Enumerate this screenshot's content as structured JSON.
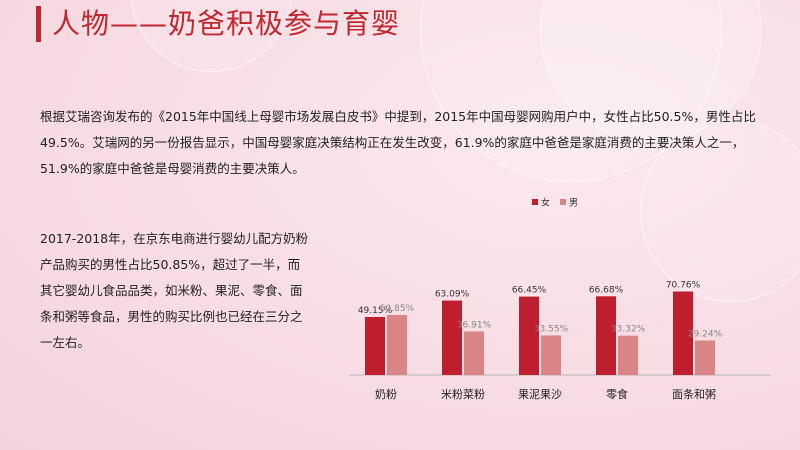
{
  "title": "人物——奶爸积极参与育婴",
  "paragraph1": "根据艾瑞咨询发布的《2015年中国线上母婴市场发展白皮书》中提到，2015年中国母婴网购用户中，女性占比50.5%，男性占比49.5%。艾瑞网的另一份报告显示，中国母婴家庭决策结构正在发生改变，61.9%的家庭中爸爸是家庭消费的主要决策人之一，51.9%的家庭中爸爸是母婴消费的主要决策人。",
  "paragraph2": "2017-2018年，在京东电商进行婴幼儿配方奶粉产品购买的男性占比50.85%，超过了一半，而其它婴幼儿食品品类，如米粉、果泥、零食、面条和粥等食品，男性的购买比例也已经在三分之一左右。",
  "colors": {
    "accent": "#c0282f",
    "female": "#be1e2d",
    "male": "#d98585"
  },
  "chart_data": {
    "type": "bar",
    "categories": [
      "奶粉",
      "米粉菜粉",
      "果泥果沙",
      "零食",
      "面条和粥"
    ],
    "series": [
      {
        "name": "女",
        "values": [
          49.15,
          63.09,
          66.45,
          66.68,
          70.76
        ],
        "labels": [
          "49.15%",
          "63.09%",
          "66.45%",
          "66.68%",
          "70.76%"
        ]
      },
      {
        "name": "男",
        "values": [
          50.85,
          36.91,
          33.55,
          33.32,
          29.24
        ],
        "labels": [
          "50.85%",
          "36.91%",
          "33.55%",
          "33.32%",
          "29.24%"
        ]
      }
    ],
    "legend_position": "top-right",
    "ylim": [
      0,
      100
    ],
    "grid": false
  }
}
